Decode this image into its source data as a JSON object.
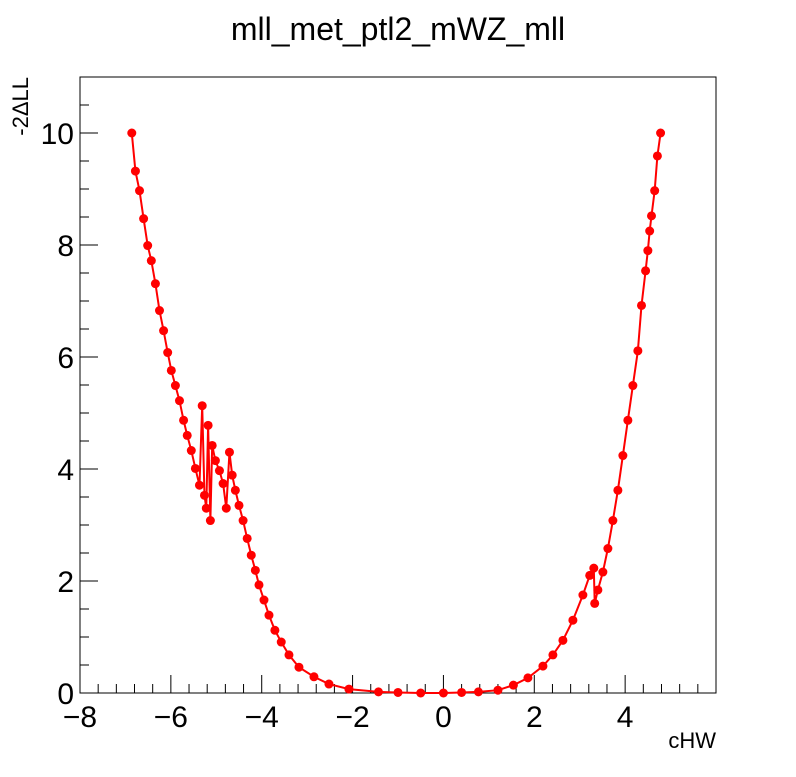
{
  "chart_data": {
    "type": "line",
    "title": "mll_met_ptl2_mWZ_mll",
    "xlabel": "cHW",
    "ylabel": "-2ΔLL",
    "color": "#ff0000",
    "x": [
      -6.86,
      -6.78,
      -6.69,
      -6.6,
      -6.51,
      -6.43,
      -6.34,
      -6.25,
      -6.16,
      -6.07,
      -5.99,
      -5.9,
      -5.81,
      -5.72,
      -5.64,
      -5.55,
      -5.46,
      -5.37,
      -5.31,
      -5.26,
      -5.22,
      -5.18,
      -5.13,
      -5.09,
      -5.02,
      -4.93,
      -4.85,
      -4.78,
      -4.71,
      -4.65,
      -4.58,
      -4.5,
      -4.41,
      -4.32,
      -4.23,
      -4.14,
      -4.06,
      -3.95,
      -3.84,
      -3.71,
      -3.57,
      -3.4,
      -3.18,
      -2.85,
      -2.52,
      -2.08,
      -1.43,
      -1.0,
      -0.5,
      0,
      0.4,
      0.77,
      1.2,
      1.54,
      1.86,
      2.19,
      2.41,
      2.63,
      2.85,
      3.07,
      3.22,
      3.31,
      3.33,
      3.4,
      3.51,
      3.62,
      3.73,
      3.84,
      3.95,
      4.06,
      4.17,
      4.28,
      4.36,
      4.45,
      4.5,
      4.54,
      4.58,
      4.65,
      4.71,
      4.78
    ],
    "values": [
      10.0,
      9.32,
      8.97,
      8.47,
      7.99,
      7.72,
      7.31,
      6.83,
      6.47,
      6.08,
      5.76,
      5.49,
      5.22,
      4.87,
      4.6,
      4.33,
      4.01,
      3.71,
      5.13,
      3.53,
      3.3,
      4.78,
      3.08,
      4.42,
      4.15,
      3.97,
      3.74,
      3.3,
      4.3,
      3.89,
      3.62,
      3.35,
      3.08,
      2.76,
      2.46,
      2.19,
      1.93,
      1.66,
      1.39,
      1.12,
      0.91,
      0.68,
      0.46,
      0.29,
      0.16,
      0.07,
      0.02,
      0.01,
      0,
      0,
      0.01,
      0.02,
      0.05,
      0.14,
      0.27,
      0.48,
      0.68,
      0.94,
      1.3,
      1.75,
      2.1,
      2.23,
      1.6,
      1.84,
      2.16,
      2.58,
      3.08,
      3.62,
      4.24,
      4.87,
      5.49,
      6.11,
      6.92,
      7.54,
      7.9,
      8.25,
      8.52,
      8.97,
      9.59,
      10.0
    ],
    "xlim": [
      -8,
      6
    ],
    "ylim": [
      0,
      11
    ],
    "xticks": [
      {
        "value": -8,
        "label": "−8"
      },
      {
        "value": -6,
        "label": "−6"
      },
      {
        "value": -4,
        "label": "−4"
      },
      {
        "value": -2,
        "label": "−2"
      },
      0,
      2,
      4
    ],
    "yticks": [
      0,
      2,
      4,
      6,
      8,
      10
    ]
  }
}
